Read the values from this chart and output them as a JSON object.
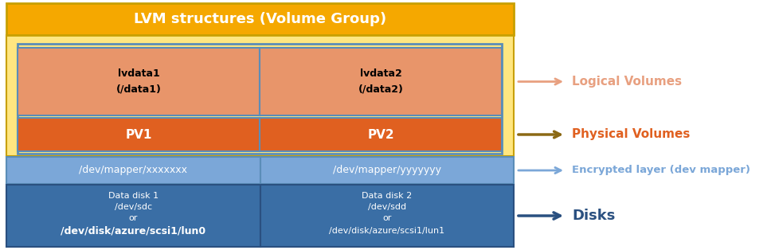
{
  "title": "LVM structures (Volume Group)",
  "title_bg": "#F5A800",
  "title_color": "white",
  "vg_bg": "#FFE680",
  "vg_border": "#C8A000",
  "lv_bg": "#E8956A",
  "lv_border": "#5B8DB8",
  "lv1_text": "lvdata1\n(/data1)",
  "lv2_text": "lvdata2\n(/data2)",
  "pv_bg": "#E06020",
  "pv_border": "#5B8DB8",
  "pv1_text": "PV1",
  "pv2_text": "PV2",
  "enc_bg": "#7BA7D8",
  "enc_border": "#5B8DB8",
  "enc1_text": "/dev/mapper/xxxxxxx",
  "enc2_text": "/dev/mapper/yyyyyyy",
  "disk_bg": "#3A6EA5",
  "disk_border": "#2A5080",
  "disk1_line1": "Data disk 1",
  "disk1_line2": "/dev/sdc",
  "disk1_line3": "or",
  "disk1_line4": "/dev/disk/azure/scsi1/lun0",
  "disk2_line1": "Data disk 2",
  "disk2_line2": "/dev/sdd",
  "disk2_line3": "or",
  "disk2_line4": "/dev/disk/azure/scsi1/lun1",
  "arrow_lv_color": "#E8A080",
  "arrow_pv_color": "#8B6914",
  "arrow_enc_color": "#7BA7D8",
  "arrow_disk_color": "#2A5080",
  "label_lv": "Logical Volumes",
  "label_pv": "Physical Volumes",
  "label_enc": "Encrypted layer (dev mapper)",
  "label_disk": "Disks",
  "label_lv_color": "#E8A080",
  "label_pv_color": "#E06020",
  "label_enc_color": "#7BA7D8",
  "label_disk_color": "#2A5080",
  "fig_w": 9.68,
  "fig_h": 3.14,
  "dpi": 100
}
